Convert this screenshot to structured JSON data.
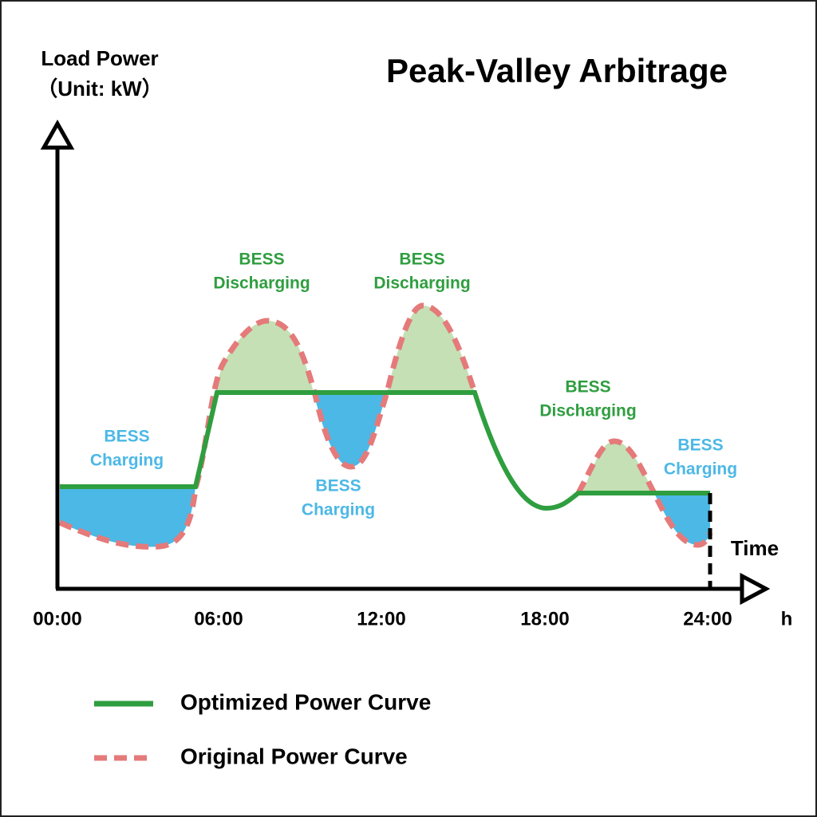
{
  "title": "Peak-Valley Arbitrage",
  "y_axis": {
    "label": [
      "Load Power",
      "（Unit: kW）"
    ]
  },
  "x_axis": {
    "label": "Time",
    "unit": "h",
    "ticks": [
      "00:00",
      "06:00",
      "12:00",
      "18:00",
      "24:00"
    ]
  },
  "annotations": [
    {
      "lines": [
        "BESS",
        "Charging"
      ]
    },
    {
      "lines": [
        "BESS",
        "Discharging"
      ]
    },
    {
      "lines": [
        "BESS",
        "Charging"
      ]
    },
    {
      "lines": [
        "BESS",
        "Discharging"
      ]
    },
    {
      "lines": [
        "BESS",
        "Discharging"
      ]
    },
    {
      "lines": [
        "BESS",
        "Charging"
      ]
    }
  ],
  "legend": [
    "Optimized Power Curve",
    "Original Power Curve"
  ]
}
